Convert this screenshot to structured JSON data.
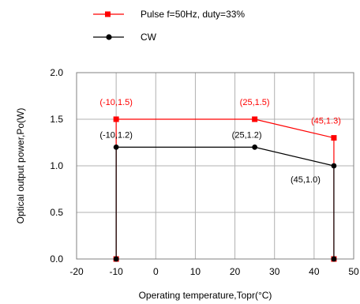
{
  "chart_data": {
    "type": "line",
    "xlabel": "Operating temperature,Topr(°C)",
    "ylabel": "Optical output power,Po(W)",
    "xlim": [
      -20,
      50
    ],
    "ylim": [
      0.0,
      2.0
    ],
    "xticks": [
      "-20",
      "-10",
      "0",
      "10",
      "20",
      "30",
      "40",
      "50"
    ],
    "yticks": [
      "0.0",
      "0.5",
      "1.0",
      "1.5",
      "2.0"
    ],
    "grid": true,
    "legend_position": "top",
    "series": [
      {
        "name": "Pulse f=50Hz, duty=33%",
        "color": "#ff0000",
        "marker": "square",
        "points": [
          [
            -10,
            0.0
          ],
          [
            -10,
            1.5
          ],
          [
            25,
            1.5
          ],
          [
            45,
            1.3
          ],
          [
            45,
            0.0
          ]
        ]
      },
      {
        "name": "CW",
        "color": "#000000",
        "marker": "circle",
        "points": [
          [
            -10,
            0.0
          ],
          [
            -10,
            1.2
          ],
          [
            25,
            1.2
          ],
          [
            45,
            1.0
          ],
          [
            45,
            0.0
          ]
        ]
      }
    ],
    "annotations": [
      {
        "text": "(-10,1.5)",
        "x": -10,
        "y": 1.5,
        "series": 0
      },
      {
        "text": "(25,1.5)",
        "x": 25,
        "y": 1.5,
        "series": 0
      },
      {
        "text": "(45,1.3)",
        "x": 45,
        "y": 1.3,
        "series": 0
      },
      {
        "text": "(-10,1.2)",
        "x": -10,
        "y": 1.2,
        "series": 1
      },
      {
        "text": "(25,1.2)",
        "x": 25,
        "y": 1.2,
        "series": 1
      },
      {
        "text": "(45,1.0)",
        "x": 45,
        "y": 1.0,
        "series": 1
      }
    ]
  }
}
